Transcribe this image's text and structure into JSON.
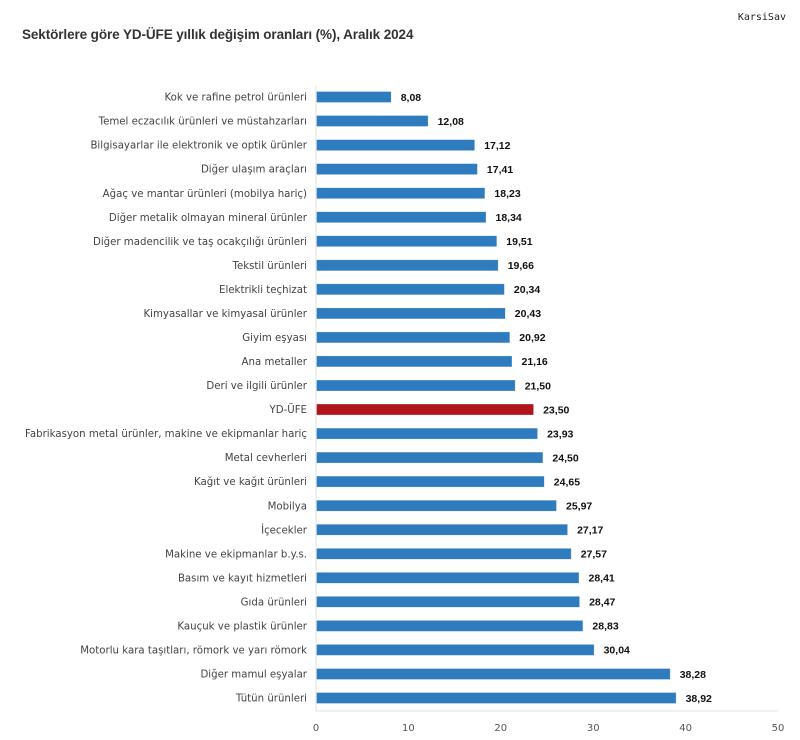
{
  "watermark": "KarsiSav",
  "chart_data": {
    "type": "bar",
    "orientation": "horizontal",
    "title": "Sektörlere göre YD-ÜFE yıllık değişim oranları (%), Aralık 2024",
    "xlabel": "",
    "ylabel": "",
    "xlim": [
      0,
      50
    ],
    "xticks": [
      0,
      10,
      20,
      30,
      40,
      50
    ],
    "grid": false,
    "colors": {
      "default": "#2e7bbd",
      "highlight": "#b0151d"
    },
    "highlight_category": "YD-ÜFE",
    "categories": [
      "Kok ve rafine petrol ürünleri",
      "Temel eczacılık ürünleri ve müstahzarları",
      "Bilgisayarlar ile elektronik ve optik ürünler",
      "Diğer ulaşım araçları",
      "Ağaç ve mantar ürünleri (mobilya hariç)",
      "Diğer metalik olmayan mineral ürünler",
      "Diğer madencilik ve taş ocakçılığı ürünleri",
      "Tekstil ürünleri",
      "Elektrikli teçhizat",
      "Kimyasallar ve kimyasal ürünler",
      "Giyim eşyası",
      "Ana metaller",
      "Deri ve ilgili ürünler",
      "YD-ÜFE",
      "Fabrikasyon metal ürünler, makine ve ekipmanlar hariç",
      "Metal cevherleri",
      "Kağıt ve kağıt ürünleri",
      "Mobilya",
      "İçecekler",
      "Makine ve ekipmanlar b.y.s.",
      "Basım ve kayıt hizmetleri",
      "Gıda ürünleri",
      "Kauçuk ve plastik ürünler",
      "Motorlu kara taşıtları, römork ve yarı römork",
      "Diğer mamul eşyalar",
      "Tütün ürünleri"
    ],
    "values": [
      8.08,
      12.08,
      17.12,
      17.41,
      18.23,
      18.34,
      19.51,
      19.66,
      20.34,
      20.43,
      20.92,
      21.16,
      21.5,
      23.5,
      23.93,
      24.5,
      24.65,
      25.97,
      27.17,
      27.57,
      28.41,
      28.47,
      28.83,
      30.04,
      38.28,
      38.92
    ],
    "value_labels": [
      "8,08",
      "12,08",
      "17,12",
      "17,41",
      "18,23",
      "18,34",
      "19,51",
      "19,66",
      "20,34",
      "20,43",
      "20,92",
      "21,16",
      "21,50",
      "23,50",
      "23,93",
      "24,50",
      "24,65",
      "25,97",
      "27,17",
      "27,57",
      "28,41",
      "28,47",
      "28,83",
      "30,04",
      "38,28",
      "38,92"
    ]
  }
}
